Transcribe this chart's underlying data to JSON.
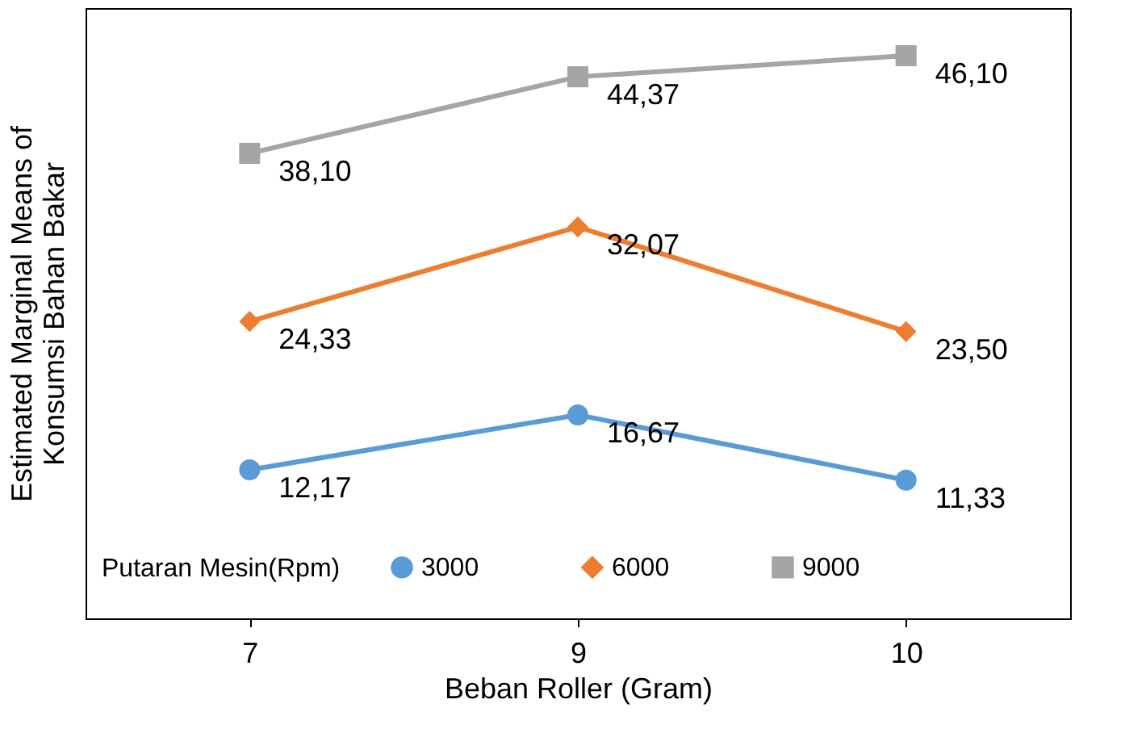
{
  "chart_data": {
    "type": "line",
    "xlabel": "Beban Roller (Gram)",
    "ylabel": "Estimated Marginal Means of\nKonsumsi Bahan Bakar",
    "legend_title": "Putaran Mesin(Rpm)",
    "categories": [
      "7",
      "9",
      "10"
    ],
    "series": [
      {
        "name": "3000",
        "color": "#5b9bd5",
        "marker": "circle",
        "values": [
          12.17,
          16.67,
          11.33
        ],
        "value_labels": [
          "12,17",
          "16,67",
          "11,33"
        ]
      },
      {
        "name": "6000",
        "color": "#ed7d31",
        "marker": "diamond",
        "values": [
          24.33,
          32.07,
          23.5
        ],
        "value_labels": [
          "24,33",
          "32,07",
          "23,50"
        ]
      },
      {
        "name": "9000",
        "color": "#a5a5a5",
        "marker": "square",
        "values": [
          38.1,
          44.37,
          46.1
        ],
        "value_labels": [
          "38,10",
          "44,37",
          "46,10"
        ]
      }
    ],
    "legend": "bottom",
    "grid": false,
    "tick_labels": "x",
    "line_style": "solid"
  }
}
